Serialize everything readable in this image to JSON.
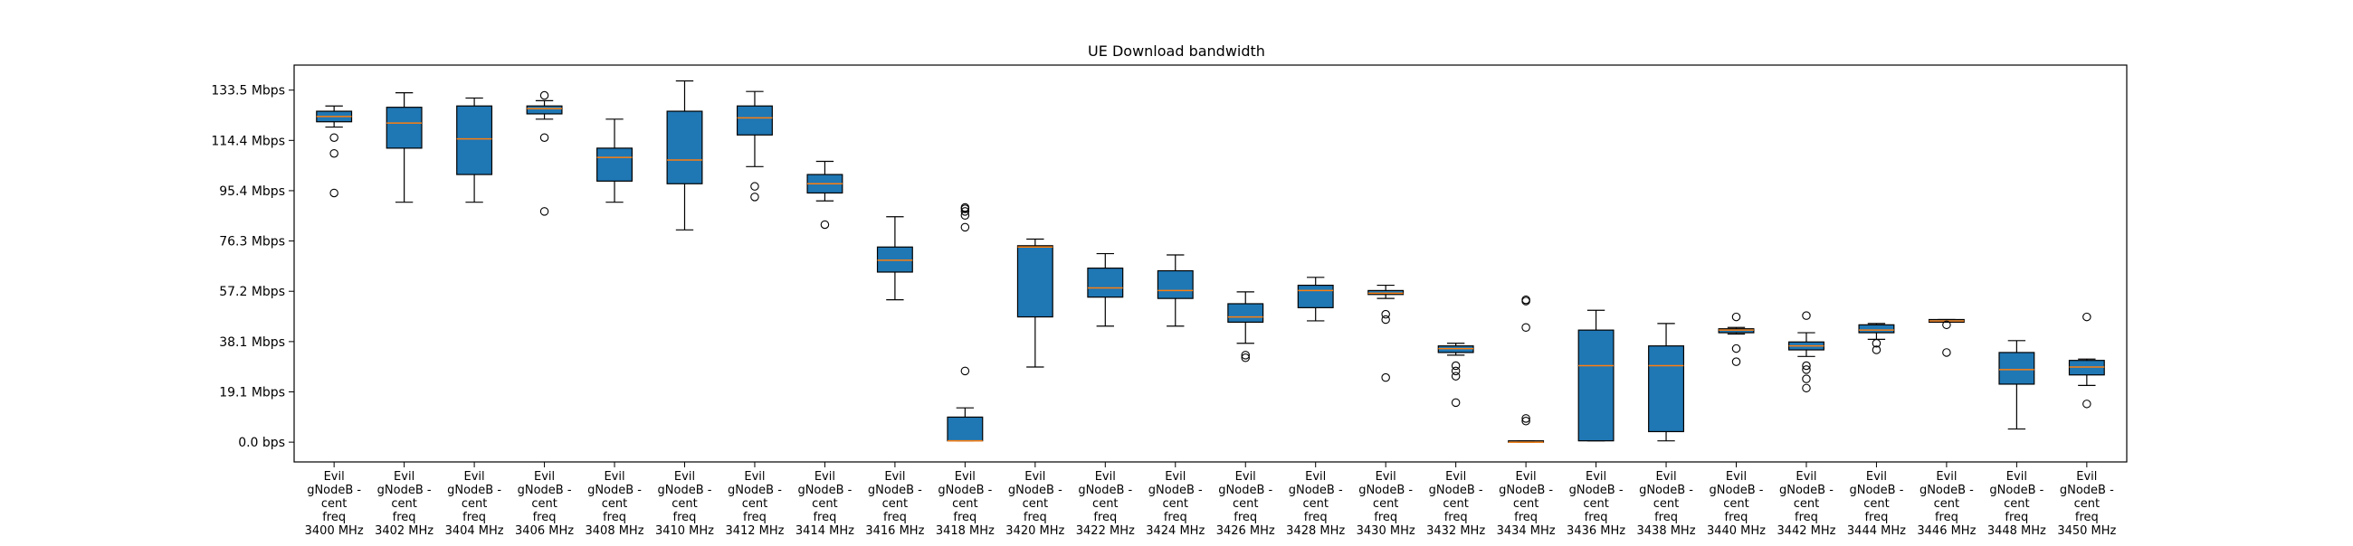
{
  "chart_data": {
    "type": "box",
    "title": "UE Download bandwidth",
    "xlabel": "",
    "ylabel": "",
    "y_unit": "Mbps",
    "ylim": [
      -7.5,
      143
    ],
    "y_ticks": [
      {
        "value": 0.0,
        "label": "0.0 bps"
      },
      {
        "value": 19.07,
        "label": "19.1 Mbps"
      },
      {
        "value": 38.14,
        "label": "38.1 Mbps"
      },
      {
        "value": 57.22,
        "label": "57.2 Mbps"
      },
      {
        "value": 76.29,
        "label": "76.3 Mbps"
      },
      {
        "value": 95.37,
        "label": "95.4 Mbps"
      },
      {
        "value": 114.44,
        "label": "114.4 Mbps"
      },
      {
        "value": 133.51,
        "label": "133.5 Mbps"
      }
    ],
    "grid": false,
    "colors": {
      "box_fill": "#1f77b4",
      "median": "#ff7f0e",
      "edge": "#000000"
    },
    "categories": [
      {
        "lines": [
          "Evil",
          "gNodeB -",
          "cent",
          "freq",
          "3400 MHz"
        ],
        "q1": 121.5,
        "median": 123.5,
        "q3": 125.5,
        "whislo": 119.5,
        "whishi": 127.5,
        "fliers": [
          115.5,
          109.5,
          94.5
        ]
      },
      {
        "lines": [
          "Evil",
          "gNodeB -",
          "cent",
          "freq",
          "3402 MHz"
        ],
        "q1": 111.5,
        "median": 121.0,
        "q3": 127.0,
        "whislo": 91.0,
        "whishi": 132.5,
        "fliers": []
      },
      {
        "lines": [
          "Evil",
          "gNodeB -",
          "cent",
          "freq",
          "3404 MHz"
        ],
        "q1": 101.5,
        "median": 115.0,
        "q3": 127.5,
        "whislo": 91.0,
        "whishi": 130.5,
        "fliers": []
      },
      {
        "lines": [
          "Evil",
          "gNodeB -",
          "cent",
          "freq",
          "3406 MHz"
        ],
        "q1": 124.5,
        "median": 126.5,
        "q3": 127.5,
        "whislo": 122.5,
        "whishi": 129.5,
        "fliers": [
          131.5,
          115.5,
          87.5
        ]
      },
      {
        "lines": [
          "Evil",
          "gNodeB -",
          "cent",
          "freq",
          "3408 MHz"
        ],
        "q1": 99.0,
        "median": 108.0,
        "q3": 111.5,
        "whislo": 91.0,
        "whishi": 122.5,
        "fliers": []
      },
      {
        "lines": [
          "Evil",
          "gNodeB -",
          "cent",
          "freq",
          "3410 MHz"
        ],
        "q1": 98.0,
        "median": 107.0,
        "q3": 125.5,
        "whislo": 80.5,
        "whishi": 137.0,
        "fliers": []
      },
      {
        "lines": [
          "Evil",
          "gNodeB -",
          "cent",
          "freq",
          "3412 MHz"
        ],
        "q1": 116.5,
        "median": 123.0,
        "q3": 127.5,
        "whislo": 104.5,
        "whishi": 133.0,
        "fliers": [
          97.0,
          93.0
        ]
      },
      {
        "lines": [
          "Evil",
          "gNodeB -",
          "cent",
          "freq",
          "3414 MHz"
        ],
        "q1": 94.5,
        "median": 98.0,
        "q3": 101.5,
        "whislo": 91.5,
        "whishi": 106.5,
        "fliers": [
          82.5
        ]
      },
      {
        "lines": [
          "Evil",
          "gNodeB -",
          "cent",
          "freq",
          "3416 MHz"
        ],
        "q1": 64.5,
        "median": 69.0,
        "q3": 74.0,
        "whislo": 54.0,
        "whishi": 85.5,
        "fliers": []
      },
      {
        "lines": [
          "Evil",
          "gNodeB -",
          "cent",
          "freq",
          "3418 MHz"
        ],
        "q1": 0.5,
        "median": 0.5,
        "q3": 9.5,
        "whislo": 0.5,
        "whishi": 13.0,
        "fliers": [
          27.0,
          81.5,
          86.0,
          87.5,
          88.5,
          89.0
        ]
      },
      {
        "lines": [
          "Evil",
          "gNodeB -",
          "cent",
          "freq",
          "3420 MHz"
        ],
        "q1": 47.5,
        "median": 74.0,
        "q3": 74.5,
        "whislo": 28.5,
        "whishi": 77.0,
        "fliers": []
      },
      {
        "lines": [
          "Evil",
          "gNodeB -",
          "cent",
          "freq",
          "3422 MHz"
        ],
        "q1": 55.0,
        "median": 58.5,
        "q3": 66.0,
        "whislo": 44.0,
        "whishi": 71.5,
        "fliers": []
      },
      {
        "lines": [
          "Evil",
          "gNodeB -",
          "cent",
          "freq",
          "3424 MHz"
        ],
        "q1": 54.5,
        "median": 57.5,
        "q3": 65.0,
        "whislo": 44.0,
        "whishi": 71.0,
        "fliers": []
      },
      {
        "lines": [
          "Evil",
          "gNodeB -",
          "cent",
          "freq",
          "3426 MHz"
        ],
        "q1": 45.5,
        "median": 47.5,
        "q3": 52.5,
        "whislo": 37.5,
        "whishi": 57.0,
        "fliers": [
          33.0,
          32.0
        ]
      },
      {
        "lines": [
          "Evil",
          "gNodeB -",
          "cent",
          "freq",
          "3428 MHz"
        ],
        "q1": 51.0,
        "median": 57.5,
        "q3": 59.5,
        "whislo": 46.0,
        "whishi": 62.5,
        "fliers": []
      },
      {
        "lines": [
          "Evil",
          "gNodeB -",
          "cent",
          "freq",
          "3430 MHz"
        ],
        "q1": 56.0,
        "median": 56.5,
        "q3": 57.5,
        "whislo": 54.5,
        "whishi": 59.5,
        "fliers": [
          48.5,
          46.5,
          24.5
        ]
      },
      {
        "lines": [
          "Evil",
          "gNodeB -",
          "cent",
          "freq",
          "3432 MHz"
        ],
        "q1": 34.0,
        "median": 35.5,
        "q3": 36.5,
        "whislo": 33.0,
        "whishi": 37.5,
        "fliers": [
          29.0,
          27.0,
          25.0,
          15.0
        ]
      },
      {
        "lines": [
          "Evil",
          "gNodeB -",
          "cent",
          "freq",
          "3434 MHz"
        ],
        "q1": 0.0,
        "median": 0.0,
        "q3": 0.5,
        "whislo": 0.0,
        "whishi": 0.5,
        "fliers": [
          54.0,
          53.5,
          43.5,
          9.0,
          8.0
        ]
      },
      {
        "lines": [
          "Evil",
          "gNodeB -",
          "cent",
          "freq",
          "3436 MHz"
        ],
        "q1": 0.5,
        "median": 29.0,
        "q3": 42.5,
        "whislo": 0.5,
        "whishi": 50.0,
        "fliers": []
      },
      {
        "lines": [
          "Evil",
          "gNodeB -",
          "cent",
          "freq",
          "3438 MHz"
        ],
        "q1": 4.0,
        "median": 29.0,
        "q3": 36.5,
        "whislo": 0.5,
        "whishi": 45.0,
        "fliers": []
      },
      {
        "lines": [
          "Evil",
          "gNodeB -",
          "cent",
          "freq",
          "3440 MHz"
        ],
        "q1": 41.5,
        "median": 42.5,
        "q3": 43.0,
        "whislo": 41.0,
        "whishi": 43.5,
        "fliers": [
          47.5,
          35.5,
          30.5
        ]
      },
      {
        "lines": [
          "Evil",
          "gNodeB -",
          "cent",
          "freq",
          "3442 MHz"
        ],
        "q1": 35.0,
        "median": 36.5,
        "q3": 38.0,
        "whislo": 32.5,
        "whishi": 41.5,
        "fliers": [
          48.0,
          29.0,
          27.5,
          24.0,
          20.5
        ]
      },
      {
        "lines": [
          "Evil",
          "gNodeB -",
          "cent",
          "freq",
          "3444 MHz"
        ],
        "q1": 41.5,
        "median": 42.5,
        "q3": 44.5,
        "whislo": 39.0,
        "whishi": 45.0,
        "fliers": [
          37.5,
          35.0
        ]
      },
      {
        "lines": [
          "Evil",
          "gNodeB -",
          "cent",
          "freq",
          "3446 MHz"
        ],
        "q1": 45.5,
        "median": 46.0,
        "q3": 46.5,
        "whislo": 45.5,
        "whishi": 46.5,
        "fliers": [
          44.5,
          34.0
        ]
      },
      {
        "lines": [
          "Evil",
          "gNodeB -",
          "cent",
          "freq",
          "3448 MHz"
        ],
        "q1": 22.0,
        "median": 27.5,
        "q3": 34.0,
        "whislo": 5.0,
        "whishi": 38.5,
        "fliers": []
      },
      {
        "lines": [
          "Evil",
          "gNodeB -",
          "cent",
          "freq",
          "3450 MHz"
        ],
        "q1": 25.5,
        "median": 28.5,
        "q3": 31.0,
        "whislo": 21.5,
        "whishi": 31.5,
        "fliers": [
          47.5,
          14.5
        ]
      }
    ]
  }
}
